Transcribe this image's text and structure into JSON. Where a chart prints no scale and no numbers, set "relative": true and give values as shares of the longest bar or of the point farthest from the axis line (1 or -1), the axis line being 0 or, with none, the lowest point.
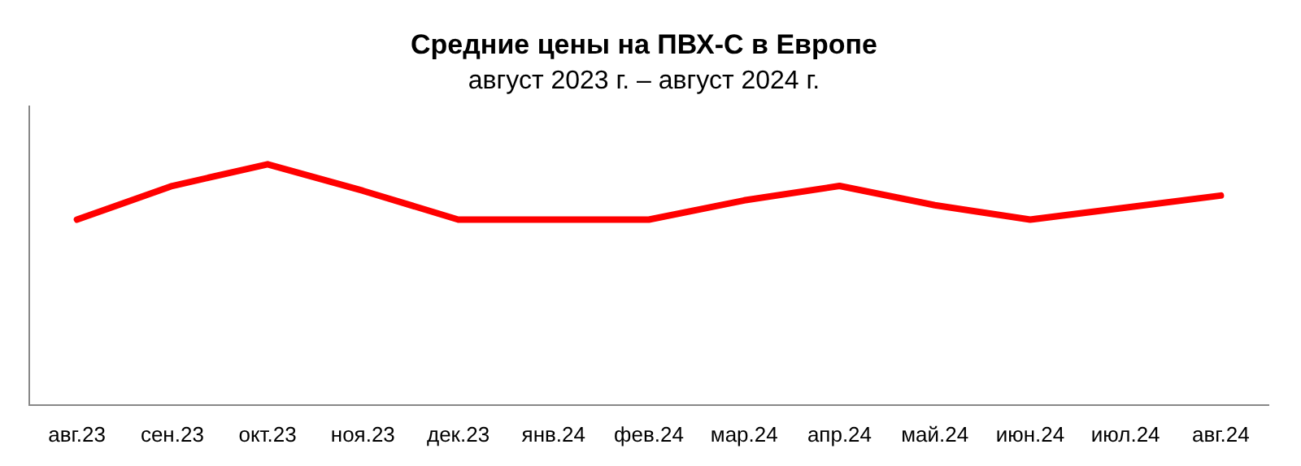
{
  "chart_data": {
    "type": "line",
    "title": "Средние цены на ПВХ-С в Европе",
    "subtitle": "август 2023 г. – август 2024 г.",
    "categories": [
      "авг.23",
      "сен.23",
      "окт.23",
      "ноя.23",
      "дек.23",
      "янв.24",
      "фев.24",
      "мар.24",
      "апр.24",
      "май.24",
      "июн.24",
      "июл.24",
      "авг.24"
    ],
    "series": [
      {
        "color": "#ff0000",
        "values": [
          0.77,
          0.91,
          1,
          0.89,
          0.77,
          0.77,
          0.77,
          0.85,
          0.91,
          0.83,
          0.77,
          0.82,
          0.87
        ]
      }
    ],
    "relative": true,
    "legend": false,
    "marker": "none",
    "line_style": "solid"
  }
}
